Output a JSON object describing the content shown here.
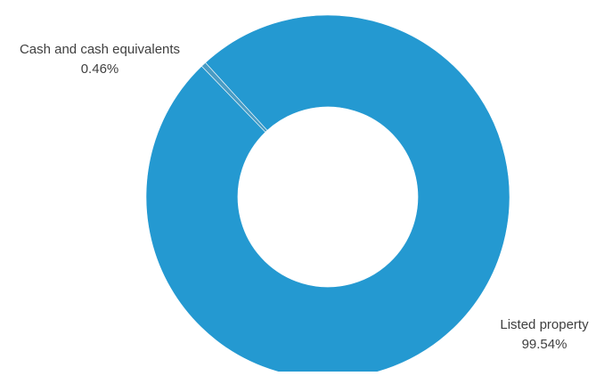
{
  "chart_data": {
    "type": "pie",
    "variant": "donut",
    "series": [
      {
        "name": "Cash and cash equivalents",
        "value": 0.46,
        "label": "0.46%",
        "color": "#4a9cc4"
      },
      {
        "name": "Listed property",
        "value": 99.54,
        "label": "99.54%",
        "color": "#2499d1"
      }
    ],
    "legend": "none",
    "data_labels": "outside"
  }
}
